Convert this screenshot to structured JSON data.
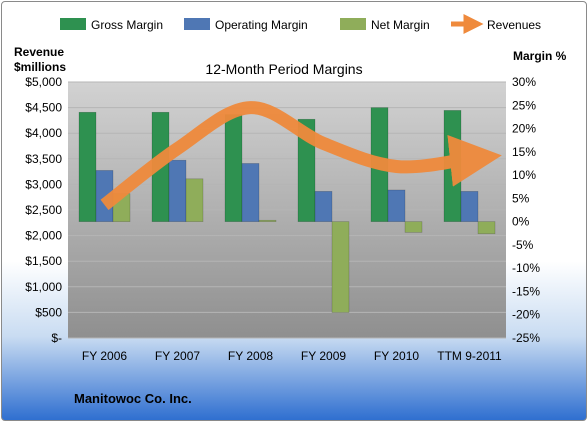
{
  "chart_data": {
    "type": "bar",
    "title": "12-Month Period Margins",
    "company": "Manitowoc Co. Inc.",
    "categories": [
      "FY 2006",
      "FY 2007",
      "FY 2008",
      "FY 2009",
      "FY 2010",
      "TTM 9-2011"
    ],
    "left_axis": {
      "label_line1": "Revenue",
      "label_line2": "$millions",
      "ylim": [
        0,
        5000
      ],
      "ticks": [
        "$-",
        "$500",
        "$1,000",
        "$1,500",
        "$2,000",
        "$2,500",
        "$3,000",
        "$3,500",
        "$4,000",
        "$4,500",
        "$5,000"
      ]
    },
    "right_axis": {
      "label": "Margin %",
      "ylim": [
        -25,
        30
      ],
      "ticks": [
        "-25%",
        "-20%",
        "-15%",
        "-10%",
        "-5%",
        "0%",
        "5%",
        "10%",
        "15%",
        "20%",
        "25%",
        "30%"
      ]
    },
    "series": [
      {
        "name": "Gross Margin",
        "axis": "right",
        "color": "#2e9150",
        "values": [
          23.5,
          23.5,
          23.0,
          22.0,
          24.5,
          23.9
        ]
      },
      {
        "name": "Operating Margin",
        "axis": "right",
        "color": "#4f77b4",
        "values": [
          11.0,
          13.2,
          12.5,
          6.5,
          6.8,
          6.5
        ]
      },
      {
        "name": "Net Margin",
        "axis": "right",
        "color": "#8fad5a",
        "values": [
          6.0,
          9.2,
          0.3,
          -19.5,
          -2.3,
          -2.6
        ]
      },
      {
        "name": "Revenues",
        "axis": "left",
        "type": "line",
        "color": "#ef8a3c",
        "values": [
          2600,
          3700,
          4500,
          3800,
          3350,
          3500
        ]
      }
    ],
    "legend_position": "top",
    "grid": true
  }
}
